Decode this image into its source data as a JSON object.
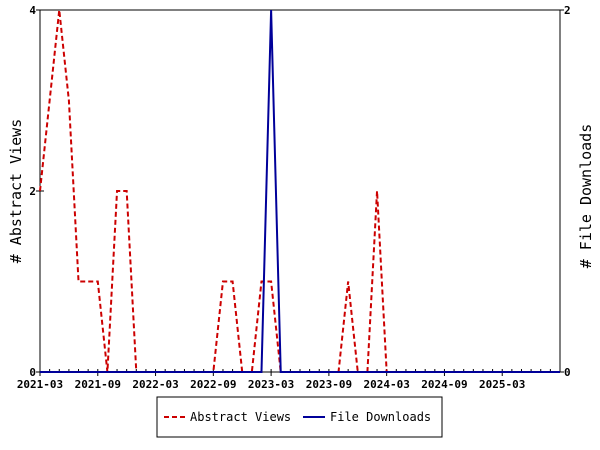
{
  "chart_data": {
    "type": "line",
    "x": [
      "2021-03",
      "2021-04",
      "2021-05",
      "2021-06",
      "2021-07",
      "2021-08",
      "2021-09",
      "2021-10",
      "2021-11",
      "2021-12",
      "2022-01",
      "2022-02",
      "2022-03",
      "2022-04",
      "2022-05",
      "2022-06",
      "2022-07",
      "2022-08",
      "2022-09",
      "2022-10",
      "2022-11",
      "2022-12",
      "2023-01",
      "2023-02",
      "2023-03",
      "2023-04",
      "2023-05",
      "2023-06",
      "2023-07",
      "2023-08",
      "2023-09",
      "2023-10",
      "2023-11",
      "2023-12",
      "2024-01",
      "2024-02",
      "2024-03",
      "2024-04",
      "2024-05",
      "2024-06",
      "2024-07",
      "2024-08",
      "2024-09",
      "2024-10",
      "2024-11",
      "2024-12",
      "2025-01",
      "2025-02",
      "2025-03",
      "2025-04",
      "2025-05",
      "2025-06",
      "2025-07",
      "2025-08",
      "2025-09"
    ],
    "series": [
      {
        "name": "Abstract Views",
        "axis": "left",
        "color": "#cc0000",
        "style": "dashed",
        "values": [
          2,
          3,
          4,
          3,
          1,
          1,
          1,
          0,
          2,
          2,
          0,
          0,
          0,
          0,
          0,
          0,
          0,
          0,
          0,
          1,
          1,
          0,
          0,
          1,
          1,
          0,
          0,
          0,
          0,
          0,
          0,
          0,
          1,
          0,
          0,
          2,
          0,
          0,
          0,
          0,
          0,
          0,
          0,
          0,
          0,
          0,
          0,
          0,
          0,
          0,
          0,
          0,
          0,
          0,
          0
        ]
      },
      {
        "name": "File Downloads",
        "axis": "right",
        "color": "#000099",
        "style": "solid",
        "values": [
          0,
          0,
          0,
          0,
          0,
          0,
          0,
          0,
          0,
          0,
          0,
          0,
          0,
          0,
          0,
          0,
          0,
          0,
          0,
          0,
          0,
          0,
          0,
          0,
          2,
          0,
          0,
          0,
          0,
          0,
          0,
          0,
          0,
          0,
          0,
          0,
          0,
          0,
          0,
          0,
          0,
          0,
          0,
          0,
          0,
          0,
          0,
          0,
          0,
          0,
          0,
          0,
          0,
          0,
          0
        ]
      }
    ],
    "x_tick_labels": [
      "2021-03",
      "2021-09",
      "2022-03",
      "2022-09",
      "2023-03",
      "2023-09",
      "2024-03",
      "2024-09",
      "2025-03"
    ],
    "ylabel": "# Abstract Views",
    "ylabel_right": "# File Downloads",
    "ylim": [
      0,
      4
    ],
    "ylim_right": [
      0,
      2
    ],
    "y_ticks": [
      "0",
      "2",
      "4"
    ],
    "y_ticks_right": [
      "0",
      "2"
    ],
    "legend_placement": "bottom-center",
    "grid": false
  }
}
